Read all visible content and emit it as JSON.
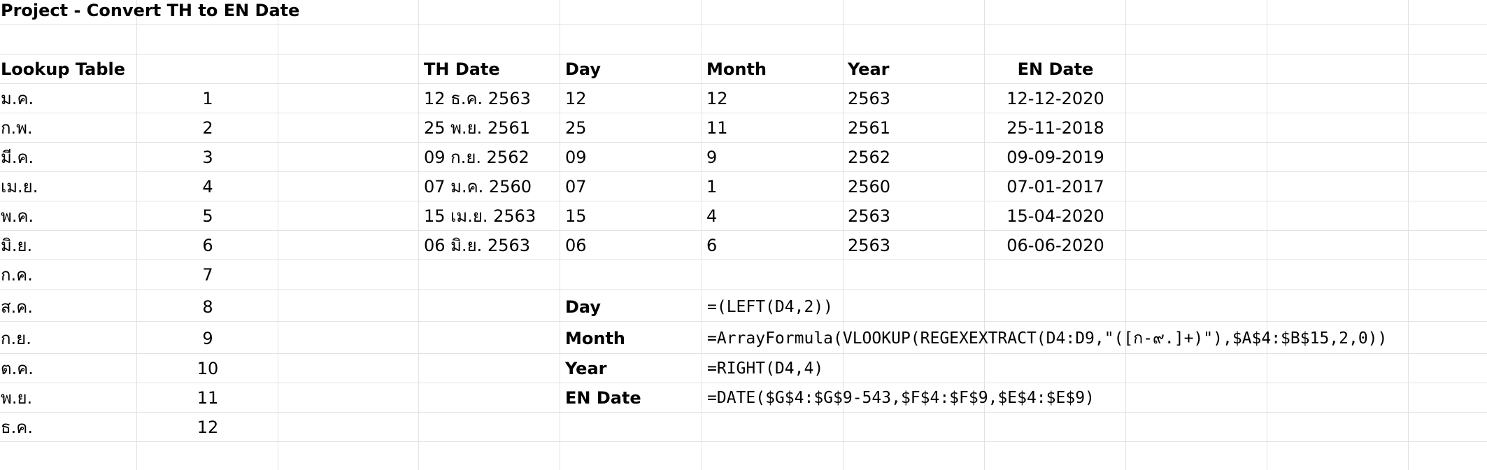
{
  "title": "Project - Convert TH to EN Date",
  "lookup_table": {
    "header": "Lookup Table",
    "rows": [
      {
        "th": "ม.ค.",
        "num": "1"
      },
      {
        "th": "ก.พ.",
        "num": "2"
      },
      {
        "th": "มี.ค.",
        "num": "3"
      },
      {
        "th": "เม.ย.",
        "num": "4"
      },
      {
        "th": "พ.ค.",
        "num": "5"
      },
      {
        "th": "มิ.ย.",
        "num": "6"
      },
      {
        "th": "ก.ค.",
        "num": "7"
      },
      {
        "th": "ส.ค.",
        "num": "8"
      },
      {
        "th": "ก.ย.",
        "num": "9"
      },
      {
        "th": "ต.ค.",
        "num": "10"
      },
      {
        "th": "พ.ย.",
        "num": "11"
      },
      {
        "th": "ธ.ค.",
        "num": "12"
      }
    ]
  },
  "date_table": {
    "headers": {
      "th_date": "TH Date",
      "day": "Day",
      "month": "Month",
      "year": "Year",
      "en_date": "EN Date"
    },
    "rows": [
      {
        "th_date": "12 ธ.ค. 2563",
        "day": "12",
        "month": "12",
        "year": "2563",
        "en_date": "12-12-2020"
      },
      {
        "th_date": "25 พ.ย. 2561",
        "day": "25",
        "month": "11",
        "year": "2561",
        "en_date": "25-11-2018"
      },
      {
        "th_date": "09 ก.ย. 2562",
        "day": "09",
        "month": "9",
        "year": "2562",
        "en_date": "09-09-2019"
      },
      {
        "th_date": "07 ม.ค. 2560",
        "day": "07",
        "month": "1",
        "year": "2560",
        "en_date": "07-01-2017"
      },
      {
        "th_date": "15 เม.ย. 2563",
        "day": "15",
        "month": "4",
        "year": "2563",
        "en_date": "15-04-2020"
      },
      {
        "th_date": "06 มิ.ย. 2563",
        "day": "06",
        "month": "6",
        "year": "2563",
        "en_date": "06-06-2020"
      }
    ]
  },
  "formulas": [
    {
      "label": "Day",
      "formula": "=(LEFT(D4,2))"
    },
    {
      "label": "Month",
      "formula": "=ArrayFormula(VLOOKUP(REGEXEXTRACT(D4:D9,\"([ก-๙.]+)\"),$A$4:$B$15,2,0))"
    },
    {
      "label": "Year",
      "formula": "=RIGHT(D4,4)"
    },
    {
      "label": "EN Date",
      "formula": "=DATE($G$4:$G$9-543,$F$4:$F$9,$E$4:$E$9)"
    }
  ]
}
